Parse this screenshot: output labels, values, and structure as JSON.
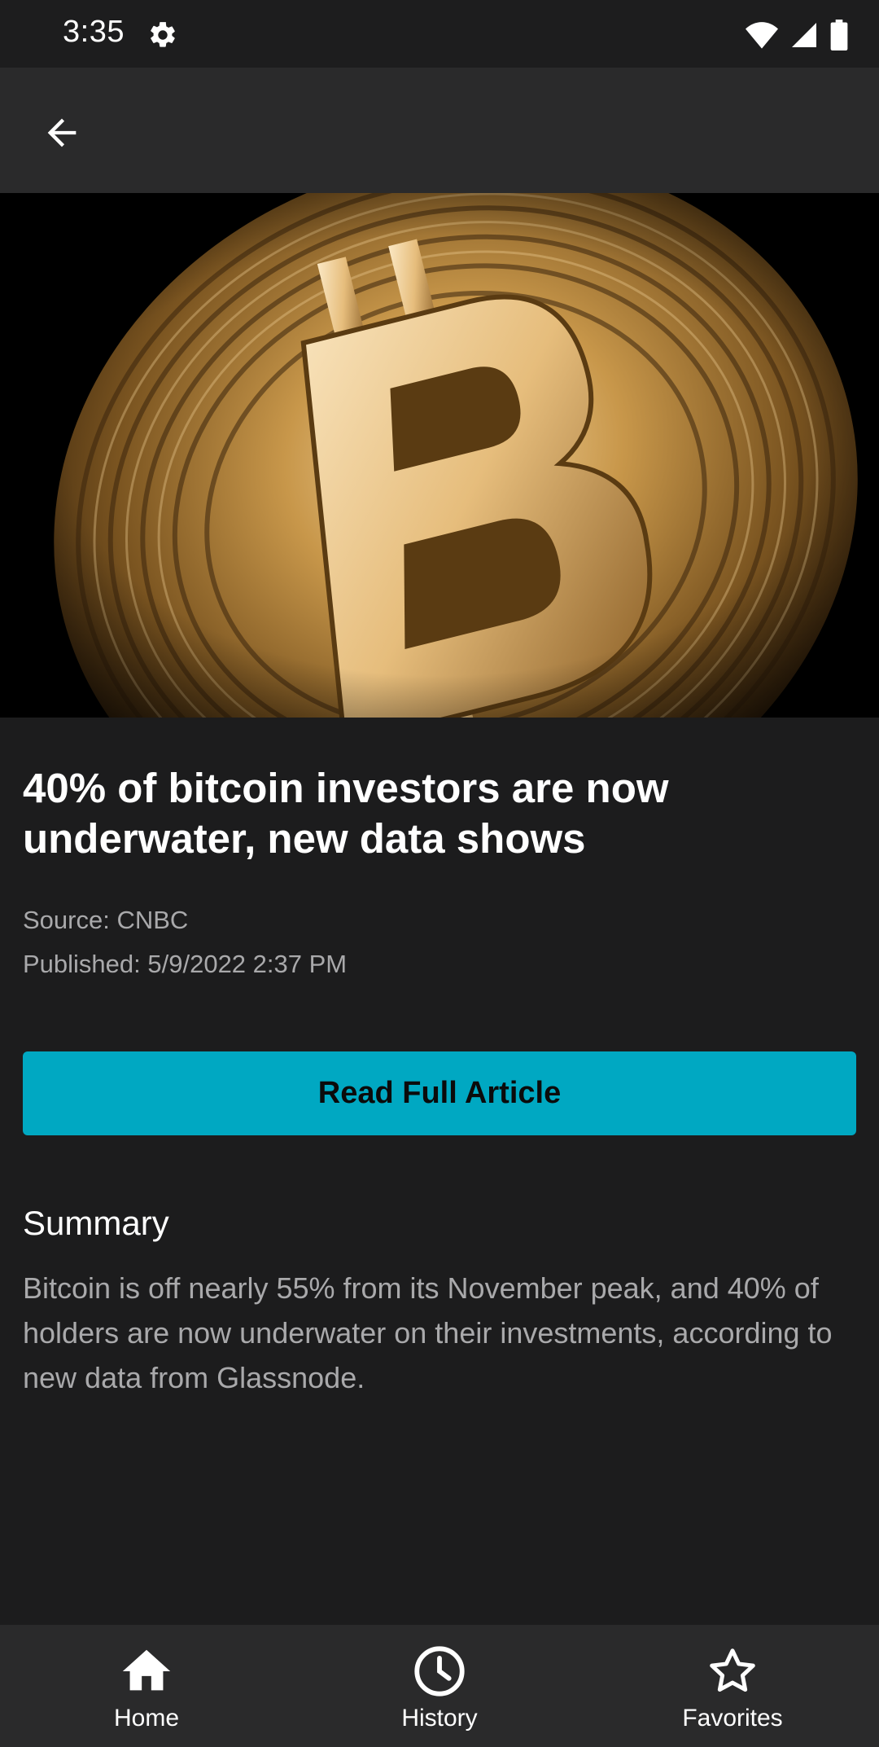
{
  "status_bar": {
    "time": "3:35",
    "icons": [
      "gear-icon",
      "wifi-icon",
      "signal-icon",
      "battery-icon"
    ]
  },
  "app_bar": {
    "back_icon": "arrow-left-icon"
  },
  "article": {
    "hero_image": "bitcoin-coin-photo",
    "title": "40% of bitcoin investors are now underwater, new data shows",
    "source": "Source: CNBC",
    "published": "Published: 5/9/2022 2:37 PM",
    "read_button_label": "Read Full Article",
    "summary_heading": "Summary",
    "summary_text": "Bitcoin is off nearly 55% from its November peak, and 40% of holders are now underwater on their investments, according to new data from Glassnode."
  },
  "bottom_nav": {
    "items": [
      {
        "label": "Home",
        "icon": "home-icon"
      },
      {
        "label": "History",
        "icon": "clock-icon"
      },
      {
        "label": "Favorites",
        "icon": "star-icon"
      }
    ]
  },
  "colors": {
    "background": "#1c1c1d",
    "app_bar": "#2a2a2b",
    "accent": "#00a8c2",
    "text_primary": "#ffffff",
    "text_secondary": "#a9a9ab"
  }
}
